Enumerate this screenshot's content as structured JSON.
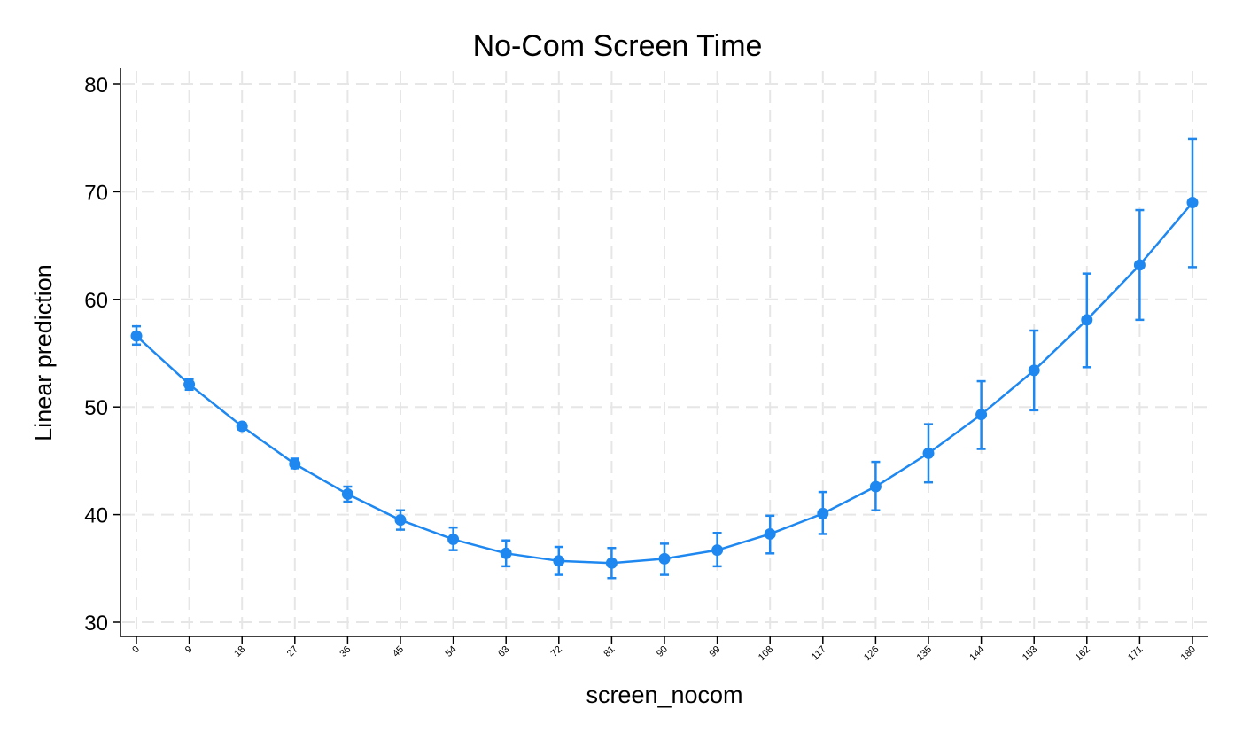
{
  "chart_data": {
    "type": "line",
    "title": "No-Com Screen Time",
    "xlabel": "screen_nocom",
    "ylabel": "Linear prediction",
    "ylim": [
      30,
      80
    ],
    "yticks": [
      30,
      40,
      50,
      60,
      70,
      80
    ],
    "xticks": [
      0,
      9,
      18,
      27,
      36,
      45,
      54,
      63,
      72,
      81,
      90,
      99,
      108,
      117,
      126,
      135,
      144,
      153,
      162,
      171,
      180
    ],
    "grid": true,
    "color": "#1E88F0",
    "x": [
      0,
      9,
      18,
      27,
      36,
      45,
      54,
      63,
      72,
      81,
      90,
      99,
      108,
      117,
      126,
      135,
      144,
      153,
      162,
      171,
      180
    ],
    "y": [
      56.6,
      52.1,
      48.2,
      44.7,
      41.9,
      39.5,
      37.7,
      36.4,
      35.7,
      35.5,
      35.9,
      36.7,
      38.2,
      40.1,
      42.6,
      45.7,
      49.3,
      53.4,
      58.1,
      63.2,
      69.0
    ],
    "ci_lower": [
      55.8,
      51.6,
      47.9,
      44.3,
      41.2,
      38.6,
      36.7,
      35.2,
      34.4,
      34.1,
      34.4,
      35.2,
      36.4,
      38.2,
      40.4,
      43.0,
      46.1,
      49.7,
      53.7,
      58.1,
      63.0
    ],
    "ci_upper": [
      57.5,
      52.6,
      48.5,
      45.2,
      42.6,
      40.4,
      38.8,
      37.6,
      37.0,
      36.9,
      37.3,
      38.3,
      39.9,
      42.1,
      44.9,
      48.4,
      52.4,
      57.1,
      62.4,
      68.3,
      74.9
    ]
  }
}
